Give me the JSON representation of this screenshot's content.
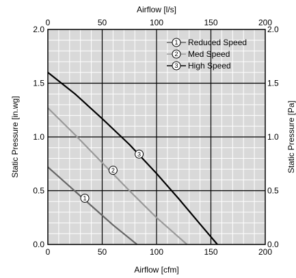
{
  "chart_data": {
    "type": "line",
    "xlabel_bottom": "Airflow [cfm]",
    "xlabel_top": "Airflow [l/s]",
    "ylabel_left": "Static Pressure [in.wg]",
    "ylabel_right": "Static Pressure [Pa]",
    "xlim": [
      0,
      200
    ],
    "ylim": [
      0,
      2.0
    ],
    "x_ticks": [
      "0",
      "50",
      "100",
      "150",
      "200"
    ],
    "y_ticks": [
      "0.0",
      "0.5",
      "1.0",
      "1.5",
      "2.0"
    ],
    "x_top_ticks": [
      "0",
      "50",
      "100",
      "150",
      "200"
    ],
    "y_right_ticks": [
      "0.0",
      "0.5",
      "1.0",
      "1.5",
      "2.0"
    ],
    "grid": true,
    "legend_position": "top-right",
    "series": [
      {
        "name": "Reduced Speed",
        "marker": "1",
        "color": "#666666",
        "points": [
          [
            0,
            0.72
          ],
          [
            20,
            0.54
          ],
          [
            40,
            0.36
          ],
          [
            60,
            0.18
          ],
          [
            82,
            0.0
          ]
        ],
        "label_at": [
          34,
          0.43
        ]
      },
      {
        "name": "Med Speed",
        "marker": "2",
        "color": "#999999",
        "points": [
          [
            0,
            1.27
          ],
          [
            25,
            1.02
          ],
          [
            50,
            0.76
          ],
          [
            75,
            0.5
          ],
          [
            100,
            0.25
          ],
          [
            128,
            0.0
          ]
        ],
        "label_at": [
          60,
          0.69
        ]
      },
      {
        "name": "High Speed",
        "marker": "3",
        "color": "#000000",
        "points": [
          [
            0,
            1.6
          ],
          [
            25,
            1.4
          ],
          [
            50,
            1.17
          ],
          [
            75,
            0.93
          ],
          [
            100,
            0.66
          ],
          [
            120,
            0.43
          ],
          [
            140,
            0.19
          ],
          [
            156,
            0.0
          ]
        ],
        "label_at": [
          84,
          0.84
        ]
      }
    ]
  },
  "colors": {
    "plot_background": "#d9d9d9",
    "grid_minor": "#ffffff",
    "grid_major": "#000000"
  }
}
